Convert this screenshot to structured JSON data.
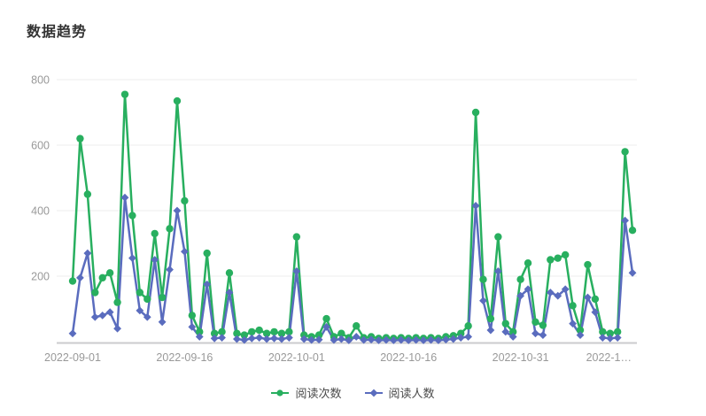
{
  "title": "数据趋势",
  "colors": {
    "read_count": "#28AF5F",
    "reader_count": "#5A6CBE",
    "axis_label": "#999999",
    "grid_line": "#EDEDED",
    "axis_line": "#CBCBCE",
    "title_text": "#333333",
    "legend_text": "#4A4A4A",
    "background": "#FFFFFF"
  },
  "chart_data": {
    "type": "line",
    "title": "数据趋势",
    "xlabel": "",
    "ylabel": "",
    "ylim": [
      0,
      800
    ],
    "yticks": [
      200,
      400,
      600,
      800
    ],
    "grid": true,
    "legend_position": "bottom",
    "xtick_labels": [
      "2022-09-01",
      "2022-09-16",
      "2022-10-01",
      "2022-10-16",
      "2022-10-31",
      "2022-1…"
    ],
    "xtick_indices": [
      0,
      15,
      30,
      45,
      60,
      75
    ],
    "x": [
      "2022-09-01",
      "2022-09-02",
      "2022-09-03",
      "2022-09-04",
      "2022-09-05",
      "2022-09-06",
      "2022-09-07",
      "2022-09-08",
      "2022-09-09",
      "2022-09-10",
      "2022-09-11",
      "2022-09-12",
      "2022-09-13",
      "2022-09-14",
      "2022-09-15",
      "2022-09-16",
      "2022-09-17",
      "2022-09-18",
      "2022-09-19",
      "2022-09-20",
      "2022-09-21",
      "2022-09-22",
      "2022-09-23",
      "2022-09-24",
      "2022-09-25",
      "2022-09-26",
      "2022-09-27",
      "2022-09-28",
      "2022-09-29",
      "2022-09-30",
      "2022-10-01",
      "2022-10-02",
      "2022-10-03",
      "2022-10-04",
      "2022-10-05",
      "2022-10-06",
      "2022-10-07",
      "2022-10-08",
      "2022-10-09",
      "2022-10-10",
      "2022-10-11",
      "2022-10-12",
      "2022-10-13",
      "2022-10-14",
      "2022-10-15",
      "2022-10-16",
      "2022-10-17",
      "2022-10-18",
      "2022-10-19",
      "2022-10-20",
      "2022-10-21",
      "2022-10-22",
      "2022-10-23",
      "2022-10-24",
      "2022-10-25",
      "2022-10-26",
      "2022-10-27",
      "2022-10-28",
      "2022-10-29",
      "2022-10-30",
      "2022-10-31",
      "2022-11-01",
      "2022-11-02",
      "2022-11-03",
      "2022-11-04",
      "2022-11-05",
      "2022-11-06",
      "2022-11-07",
      "2022-11-08",
      "2022-11-09",
      "2022-11-10",
      "2022-11-11",
      "2022-11-12",
      "2022-11-13",
      "2022-11-14",
      "2022-11-15"
    ],
    "series": [
      {
        "name": "阅读次数",
        "marker": "circle",
        "color": "#28AF5F",
        "values": [
          185,
          620,
          450,
          150,
          195,
          210,
          120,
          755,
          385,
          150,
          130,
          330,
          135,
          345,
          735,
          430,
          80,
          30,
          270,
          25,
          30,
          210,
          25,
          20,
          30,
          35,
          25,
          30,
          25,
          30,
          320,
          20,
          15,
          20,
          70,
          15,
          25,
          12,
          48,
          12,
          15,
          10,
          12,
          10,
          12,
          10,
          12,
          10,
          12,
          10,
          15,
          18,
          25,
          48,
          700,
          190,
          70,
          320,
          55,
          30,
          190,
          240,
          60,
          50,
          250,
          255,
          265,
          110,
          35,
          235,
          130,
          30,
          25,
          30,
          580,
          340
        ]
      },
      {
        "name": "阅读人数",
        "marker": "diamond",
        "color": "#5A6CBE",
        "values": [
          25,
          195,
          270,
          75,
          80,
          90,
          40,
          440,
          255,
          95,
          75,
          250,
          60,
          220,
          400,
          275,
          45,
          15,
          175,
          10,
          12,
          150,
          8,
          5,
          10,
          12,
          8,
          10,
          8,
          12,
          215,
          8,
          5,
          6,
          45,
          5,
          8,
          4,
          15,
          5,
          6,
          4,
          5,
          4,
          5,
          4,
          5,
          4,
          5,
          4,
          6,
          8,
          12,
          15,
          415,
          125,
          35,
          215,
          30,
          15,
          140,
          160,
          25,
          20,
          150,
          140,
          160,
          55,
          20,
          135,
          90,
          12,
          10,
          12,
          370,
          210
        ]
      }
    ]
  }
}
